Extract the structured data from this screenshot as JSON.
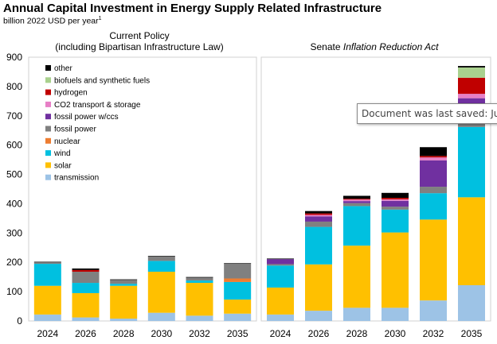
{
  "header": {
    "title": "Annual Capital Investment in Energy Supply Related Infrastructure",
    "subtitle": "billion 2022 USD per year",
    "subtitle_footnote": "1"
  },
  "tooltip": {
    "text": "Document was last saved: Just now"
  },
  "chart_data": {
    "type": "bar",
    "stacked": true,
    "ylim": [
      0,
      900
    ],
    "yticks": [
      0,
      100,
      200,
      300,
      400,
      500,
      600,
      700,
      800,
      900
    ],
    "grid": false,
    "legend_position": "top-left",
    "series_order": [
      "transmission",
      "solar",
      "wind",
      "nuclear",
      "fossil power",
      "fossil power w/ccs",
      "CO2 transport & storage",
      "hydrogen",
      "biofuels and synthetic fuels",
      "other"
    ],
    "legend_order": [
      "other",
      "biofuels and synthetic fuels",
      "hydrogen",
      "CO2 transport & storage",
      "fossil power w/ccs",
      "fossil power",
      "nuclear",
      "wind",
      "solar",
      "transmission"
    ],
    "colors": {
      "transmission": "#9dc3e6",
      "solar": "#ffc000",
      "wind": "#00c0e0",
      "nuclear": "#ed7d31",
      "fossil power": "#808080",
      "fossil power w/ccs": "#7030a0",
      "CO2 transport & storage": "#e77fc6",
      "hydrogen": "#c00000",
      "biofuels and synthetic fuels": "#a9d18e",
      "other": "#000000"
    },
    "panels": [
      {
        "title_line1": "Current Policy",
        "title_line2": "(including Bipartisan Infrastructure Law)",
        "categories": [
          "2024",
          "2026",
          "2028",
          "2030",
          "2032",
          "2035"
        ],
        "stacks": [
          {
            "transmission": 22,
            "solar": 98,
            "wind": 75,
            "nuclear": 0,
            "fossil power": 5,
            "fossil power w/ccs": 0,
            "CO2 transport & storage": 0,
            "hydrogen": 0,
            "biofuels and synthetic fuels": 0,
            "other": 2
          },
          {
            "transmission": 12,
            "solar": 83,
            "wind": 35,
            "nuclear": 0,
            "fossil power": 38,
            "fossil power w/ccs": 0,
            "CO2 transport & storage": 0,
            "hydrogen": 6,
            "biofuels and synthetic fuels": 0,
            "other": 5
          },
          {
            "transmission": 8,
            "solar": 112,
            "wind": 7,
            "nuclear": 0,
            "fossil power": 13,
            "fossil power w/ccs": 0,
            "CO2 transport & storage": 0,
            "hydrogen": 0,
            "biofuels and synthetic fuels": 0,
            "other": 2
          },
          {
            "transmission": 28,
            "solar": 140,
            "wind": 37,
            "nuclear": 0,
            "fossil power": 15,
            "fossil power w/ccs": 0,
            "CO2 transport & storage": 0,
            "hydrogen": 0,
            "biofuels and synthetic fuels": 0,
            "other": 2
          },
          {
            "transmission": 18,
            "solar": 112,
            "wind": 8,
            "nuclear": 0,
            "fossil power": 10,
            "fossil power w/ccs": 0,
            "CO2 transport & storage": 0,
            "hydrogen": 0,
            "biofuels and synthetic fuels": 0,
            "other": 2
          },
          {
            "transmission": 25,
            "solar": 48,
            "wind": 60,
            "nuclear": 12,
            "fossil power": 50,
            "fossil power w/ccs": 0,
            "CO2 transport & storage": 0,
            "hydrogen": 0,
            "biofuels and synthetic fuels": 0,
            "other": 2
          }
        ]
      },
      {
        "title_prefix": "Senate ",
        "title_italic": "Inflation Reduction Act",
        "categories": [
          "2024",
          "2026",
          "2028",
          "2030",
          "2032",
          "2035"
        ],
        "stacks": [
          {
            "transmission": 22,
            "solar": 92,
            "wind": 75,
            "nuclear": 0,
            "fossil power": 5,
            "fossil power w/ccs": 17,
            "CO2 transport & storage": 0,
            "hydrogen": 0,
            "biofuels and synthetic fuels": 0,
            "other": 2
          },
          {
            "transmission": 35,
            "solar": 158,
            "wind": 128,
            "nuclear": 0,
            "fossil power": 18,
            "fossil power w/ccs": 18,
            "CO2 transport & storage": 5,
            "hydrogen": 5,
            "biofuels and synthetic fuels": 0,
            "other": 8
          },
          {
            "transmission": 45,
            "solar": 212,
            "wind": 135,
            "nuclear": 0,
            "fossil power": 10,
            "fossil power w/ccs": 7,
            "CO2 transport & storage": 5,
            "hydrogen": 3,
            "biofuels and synthetic fuels": 0,
            "other": 10
          },
          {
            "transmission": 45,
            "solar": 257,
            "wind": 78,
            "nuclear": 0,
            "fossil power": 10,
            "fossil power w/ccs": 20,
            "CO2 transport & storage": 5,
            "hydrogen": 5,
            "biofuels and synthetic fuels": 0,
            "other": 17
          },
          {
            "transmission": 70,
            "solar": 276,
            "wind": 90,
            "nuclear": 0,
            "fossil power": 22,
            "fossil power w/ccs": 90,
            "CO2 transport & storage": 10,
            "hydrogen": 5,
            "biofuels and synthetic fuels": 0,
            "other": 30
          },
          {
            "transmission": 122,
            "solar": 300,
            "wind": 240,
            "nuclear": 0,
            "fossil power": 18,
            "fossil power w/ccs": 80,
            "CO2 transport & storage": 15,
            "hydrogen": 55,
            "biofuels and synthetic fuels": 35,
            "other": 5
          }
        ]
      }
    ]
  }
}
